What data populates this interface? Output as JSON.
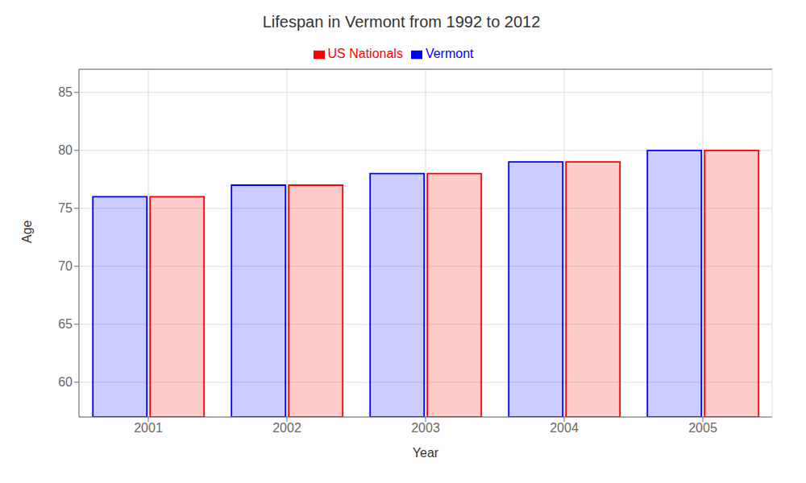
{
  "chart_data": {
    "type": "bar",
    "title": "Lifespan in Vermont from 1992 to 2012",
    "x_label": "Year",
    "y_label": "Age",
    "categories": [
      "2001",
      "2002",
      "2003",
      "2004",
      "2005"
    ],
    "series": [
      {
        "name": "Vermont",
        "color": "#0000ff",
        "values": [
          76,
          77,
          78,
          79,
          80
        ]
      },
      {
        "name": "US Nationals",
        "color": "#ff0000",
        "values": [
          76,
          77,
          78,
          79,
          80
        ]
      }
    ],
    "ylim": [
      57,
      87
    ],
    "yticks": [
      60,
      65,
      70,
      75,
      80,
      85
    ],
    "grid": true,
    "legend": "top"
  }
}
